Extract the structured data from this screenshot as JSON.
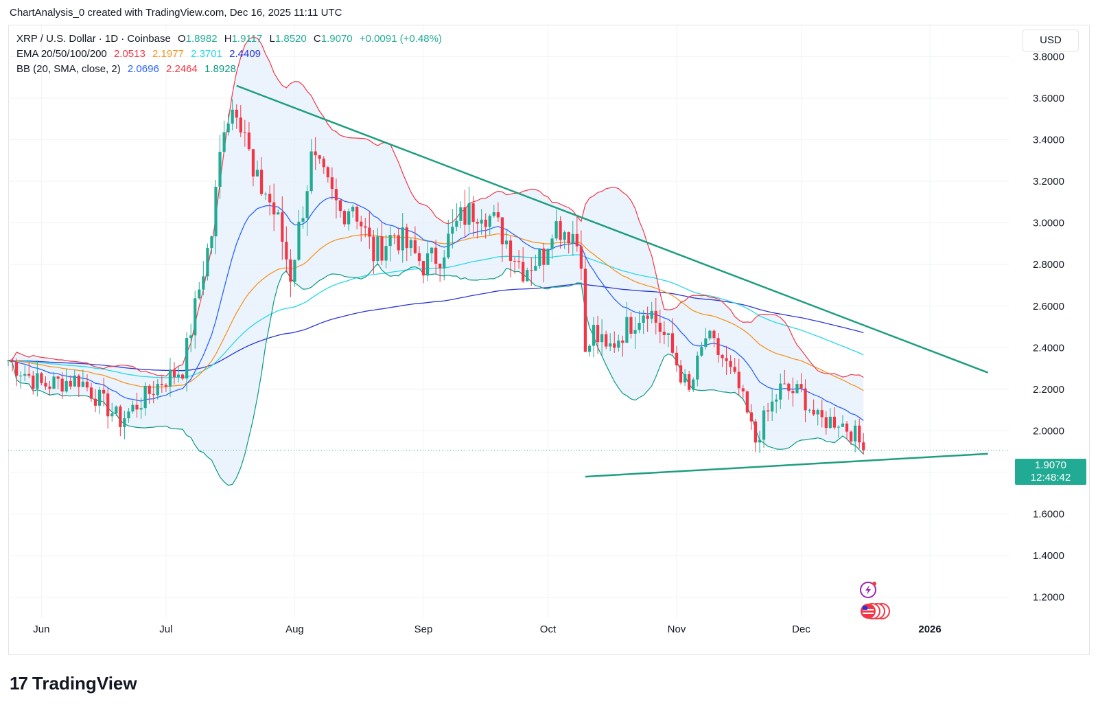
{
  "caption": "ChartAnalysis_0 created with TradingView.com, Dec 16, 2025 11:11 UTC",
  "brand": {
    "mark": "17",
    "name": "TradingView"
  },
  "currency_button": "USD",
  "legend": {
    "symbol": "XRP / U.S. Dollar · 1D · Coinbase",
    "open_label": "O",
    "open": "1.8982",
    "high_label": "H",
    "high": "1.9117",
    "low_label": "L",
    "low": "1.8520",
    "close_label": "C",
    "close": "1.9070",
    "change": "+0.0091 (+0.48%)",
    "ema_label": "EMA 20/50/100/200",
    "ema_values": [
      "2.0513",
      "2.1977",
      "2.3701",
      "2.4409"
    ],
    "bb_label": "BB (20, SMA, close, 2)",
    "bb_values": [
      "2.0696",
      "2.2464",
      "1.8928"
    ]
  },
  "last_price": {
    "price": "1.9070",
    "countdown": "12:48:42"
  },
  "colors": {
    "up": "#22ab94",
    "down": "#f23645",
    "ema20": "#2962ff",
    "ema50": "#f7941d",
    "ema100": "#26d7e6",
    "ema200": "#2b35d6",
    "bb_upper": "#f23645",
    "bb_basis": "#2962ff",
    "bb_lower": "#089981",
    "bb_fill": "#e3eefb",
    "trendline": "#1e9e7e",
    "grid": "#f0f3fa"
  },
  "chart_data": {
    "type": "candlestick",
    "x_axis": {
      "ticks": [
        {
          "label": "Jun",
          "date": "2025-06-01"
        },
        {
          "label": "Jul",
          "date": "2025-07-01"
        },
        {
          "label": "Aug",
          "date": "2025-08-01"
        },
        {
          "label": "Sep",
          "date": "2025-09-01"
        },
        {
          "label": "Oct",
          "date": "2025-10-01"
        },
        {
          "label": "Nov",
          "date": "2025-11-01"
        },
        {
          "label": "Dec",
          "date": "2025-12-01"
        },
        {
          "label": "2026",
          "date": "2026-01-01"
        }
      ],
      "range": [
        "2025-05-24",
        "2026-01-20"
      ]
    },
    "y_axis": {
      "ticks": [
        "1.2000",
        "1.4000",
        "1.6000",
        "1.8000",
        "2.0000",
        "2.2000",
        "2.4000",
        "2.6000",
        "2.8000",
        "3.0000",
        "3.2000",
        "3.4000",
        "3.6000",
        "3.8000"
      ],
      "range": [
        1.1,
        3.95
      ]
    },
    "close_series": {
      "dates": [
        "2025-05-24",
        "2025-06-01",
        "2025-06-10",
        "2025-06-20",
        "2025-06-30",
        "2025-07-05",
        "2025-07-10",
        "2025-07-12",
        "2025-07-15",
        "2025-07-18",
        "2025-07-20",
        "2025-07-22",
        "2025-07-25",
        "2025-07-28",
        "2025-07-31",
        "2025-08-05",
        "2025-08-08",
        "2025-08-12",
        "2025-08-15",
        "2025-08-20",
        "2025-08-25",
        "2025-09-01",
        "2025-09-05",
        "2025-09-10",
        "2025-09-15",
        "2025-09-20",
        "2025-09-25",
        "2025-09-30",
        "2025-10-02",
        "2025-10-07",
        "2025-10-09",
        "2025-10-10",
        "2025-10-12",
        "2025-10-15",
        "2025-10-20",
        "2025-10-25",
        "2025-10-30",
        "2025-11-04",
        "2025-11-08",
        "2025-11-12",
        "2025-11-16",
        "2025-11-20",
        "2025-11-22",
        "2025-11-26",
        "2025-12-01",
        "2025-12-05",
        "2025-12-10",
        "2025-12-14",
        "2025-12-16"
      ],
      "close": [
        2.34,
        2.22,
        2.25,
        2.05,
        2.24,
        2.3,
        2.78,
        2.95,
        3.5,
        3.58,
        3.45,
        3.2,
        3.15,
        3.0,
        2.75,
        3.3,
        3.2,
        3.05,
        3.1,
        2.85,
        2.95,
        2.8,
        2.85,
        3.02,
        3.08,
        2.95,
        2.78,
        2.85,
        3.0,
        2.95,
        2.85,
        2.35,
        2.48,
        2.38,
        2.5,
        2.6,
        2.42,
        2.18,
        2.45,
        2.35,
        2.2,
        1.95,
        2.05,
        2.2,
        2.18,
        2.05,
        2.05,
        1.98,
        1.907
      ]
    },
    "trendlines": [
      {
        "name": "",
        "from": {
          "date": "2025-07-18",
          "price": 3.66
        },
        "to": {
          "date": "2026-01-15",
          "price": 2.28
        }
      },
      {
        "name": "",
        "from": {
          "date": "2025-10-10",
          "price": 1.78
        },
        "to": {
          "date": "2026-01-15",
          "price": 1.89
        }
      }
    ],
    "indicators": {
      "ema20_last": 2.0513,
      "ema50_last": 2.1977,
      "ema100_last": 2.3701,
      "ema200_last": 2.4409,
      "bb_basis_last": 2.0696,
      "bb_upper_last": 2.2464,
      "bb_lower_last": 1.8928
    },
    "grid": true
  }
}
